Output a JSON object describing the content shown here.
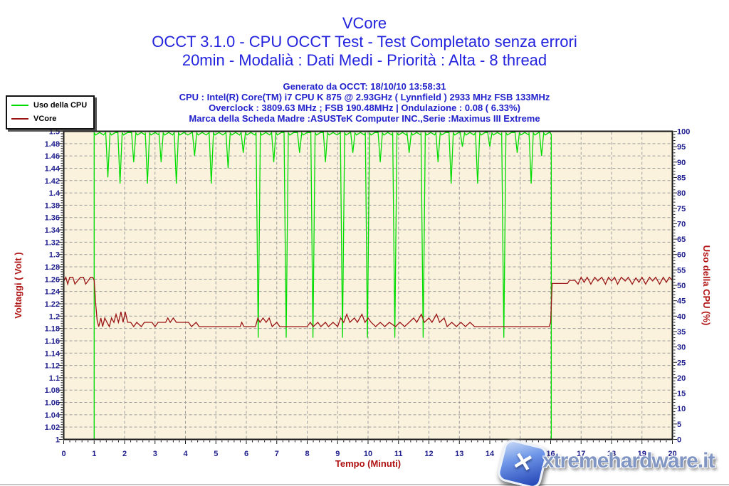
{
  "header": {
    "title": "VCore",
    "line2": "OCCT 3.1.0 - CPU OCCT Test - Test Completato senza errori",
    "line3": "20min - Modalià : Dati Medi - Priorità : Alta - 8 thread",
    "generated": "Generato da OCCT: 18/10/10 13:58:31",
    "cpu": "CPU : Intel(R) Core(TM) i7 CPU K 875 @ 2.93GHz ( Lynnfield ) 2933 MHz FSB 133MHz",
    "overclock": "Overclock : 3809.63 MHz ; FSB 190.48MHz | Ondulazione : 0.08 ( 6.33%)",
    "motherboard": "Marca della Scheda Madre :ASUSTeK Computer INC.,Serie :Maximus III Extreme"
  },
  "legend": {
    "items": [
      {
        "label": "Uso della CPU",
        "color": "#00DC00"
      },
      {
        "label": "VCore",
        "color": "#9A1414"
      }
    ]
  },
  "watermark": {
    "text": "xtremehardware.it",
    "logo_letter": "✕",
    "logo_name": "xtremehardware-x-logo"
  },
  "colors": {
    "header_blue": "#2323DE",
    "tick_label": "#1F1F8F",
    "axis_title_red": "#B01212",
    "plot_bg": "#FBF2DE",
    "grid": "#9E9E9E",
    "border": "#161616",
    "cpu_green": "#00DC00",
    "vcore_red": "#9A1414"
  },
  "chart_data": {
    "type": "line",
    "title": "VCore",
    "x_axis": {
      "label": "Tempo (Minuti)",
      "min": 0,
      "max": 20,
      "tick_step": 1,
      "minor_step": 0.2
    },
    "y_left": {
      "label": "Voltaggi ( Volt )",
      "min": 1.0,
      "max": 1.5,
      "tick_step": 0.02,
      "minor_step": 0.004
    },
    "y_right": {
      "label": "Uso della CPU (%)",
      "min": 0,
      "max": 100,
      "tick_step": 5,
      "minor_step": 1
    },
    "grid": {
      "style": "dashed",
      "horizontal_step_volts": 0.02,
      "vertical_step_minutes": 1
    },
    "legend_position": "top-left",
    "series": [
      {
        "name": "Uso della CPU",
        "axis": "right",
        "color": "#00DC00",
        "shape": "baseline-with-dips",
        "baseline_percent": 100,
        "start": {
          "x": 1.0,
          "from_percent": 0
        },
        "end": {
          "x": 16.02,
          "to_percent": 0
        },
        "dips": [
          [
            1.45,
            85
          ],
          [
            1.85,
            83
          ],
          [
            2.3,
            90
          ],
          [
            2.75,
            83
          ],
          [
            3.2,
            90
          ],
          [
            3.7,
            83
          ],
          [
            4.3,
            92
          ],
          [
            4.85,
            83
          ],
          [
            5.4,
            88
          ],
          [
            5.9,
            93
          ],
          [
            6.39,
            33
          ],
          [
            6.9,
            90
          ],
          [
            7.31,
            33
          ],
          [
            7.75,
            93
          ],
          [
            8.19,
            33
          ],
          [
            8.6,
            90
          ],
          [
            9.16,
            33
          ],
          [
            9.5,
            93
          ],
          [
            9.98,
            33
          ],
          [
            10.4,
            90
          ],
          [
            10.88,
            33
          ],
          [
            11.35,
            93
          ],
          [
            11.81,
            33
          ],
          [
            12.3,
            90
          ],
          [
            12.73,
            83
          ],
          [
            13.1,
            95
          ],
          [
            13.6,
            83
          ],
          [
            14.0,
            95
          ],
          [
            14.46,
            33
          ],
          [
            14.9,
            93
          ],
          [
            15.36,
            83
          ],
          [
            15.7,
            92
          ]
        ]
      },
      {
        "name": "VCore",
        "axis": "left",
        "color": "#9A1414",
        "shape": "points",
        "points": [
          [
            0,
            1.257
          ],
          [
            0.07,
            1.263
          ],
          [
            0.13,
            1.252
          ],
          [
            0.2,
            1.263
          ],
          [
            0.3,
            1.263
          ],
          [
            0.37,
            1.252
          ],
          [
            0.45,
            1.257
          ],
          [
            0.55,
            1.263
          ],
          [
            0.65,
            1.263
          ],
          [
            0.72,
            1.252
          ],
          [
            0.8,
            1.257
          ],
          [
            0.88,
            1.263
          ],
          [
            0.95,
            1.263
          ],
          [
            1.0,
            1.258
          ],
          [
            1.05,
            1.22
          ],
          [
            1.1,
            1.193
          ],
          [
            1.15,
            1.183
          ],
          [
            1.22,
            1.197
          ],
          [
            1.28,
            1.183
          ],
          [
            1.35,
            1.197
          ],
          [
            1.42,
            1.19
          ],
          [
            1.5,
            1.183
          ],
          [
            1.57,
            1.197
          ],
          [
            1.65,
            1.19
          ],
          [
            1.72,
            1.203
          ],
          [
            1.8,
            1.19
          ],
          [
            1.88,
            1.207
          ],
          [
            1.95,
            1.19
          ],
          [
            2.02,
            1.207
          ],
          [
            2.1,
            1.19
          ],
          [
            2.2,
            1.19
          ],
          [
            2.3,
            1.183
          ],
          [
            2.4,
            1.19
          ],
          [
            2.55,
            1.183
          ],
          [
            2.65,
            1.19
          ],
          [
            2.9,
            1.19
          ],
          [
            3.0,
            1.183
          ],
          [
            3.1,
            1.19
          ],
          [
            3.35,
            1.19
          ],
          [
            3.42,
            1.197
          ],
          [
            3.5,
            1.19
          ],
          [
            3.6,
            1.197
          ],
          [
            3.7,
            1.19
          ],
          [
            3.9,
            1.19
          ],
          [
            4.1,
            1.19
          ],
          [
            4.2,
            1.183
          ],
          [
            4.35,
            1.19
          ],
          [
            4.45,
            1.183
          ],
          [
            4.8,
            1.183
          ],
          [
            5.2,
            1.183
          ],
          [
            5.5,
            1.183
          ],
          [
            5.8,
            1.183
          ],
          [
            5.85,
            1.19
          ],
          [
            5.92,
            1.183
          ],
          [
            6.3,
            1.183
          ],
          [
            6.38,
            1.197
          ],
          [
            6.45,
            1.19
          ],
          [
            6.55,
            1.197
          ],
          [
            6.65,
            1.19
          ],
          [
            6.75,
            1.197
          ],
          [
            6.85,
            1.183
          ],
          [
            7.0,
            1.19
          ],
          [
            7.1,
            1.183
          ],
          [
            7.5,
            1.183
          ],
          [
            8.0,
            1.183
          ],
          [
            8.1,
            1.19
          ],
          [
            8.2,
            1.183
          ],
          [
            8.35,
            1.19
          ],
          [
            8.45,
            1.183
          ],
          [
            8.6,
            1.19
          ],
          [
            8.7,
            1.183
          ],
          [
            8.85,
            1.19
          ],
          [
            9.0,
            1.183
          ],
          [
            9.1,
            1.197
          ],
          [
            9.2,
            1.19
          ],
          [
            9.3,
            1.203
          ],
          [
            9.4,
            1.19
          ],
          [
            9.55,
            1.197
          ],
          [
            9.65,
            1.19
          ],
          [
            9.8,
            1.203
          ],
          [
            9.9,
            1.19
          ],
          [
            10.0,
            1.197
          ],
          [
            10.1,
            1.19
          ],
          [
            10.25,
            1.183
          ],
          [
            10.4,
            1.19
          ],
          [
            10.55,
            1.183
          ],
          [
            10.7,
            1.19
          ],
          [
            10.9,
            1.183
          ],
          [
            11.05,
            1.19
          ],
          [
            11.2,
            1.183
          ],
          [
            11.35,
            1.19
          ],
          [
            11.5,
            1.197
          ],
          [
            11.6,
            1.19
          ],
          [
            11.75,
            1.203
          ],
          [
            11.85,
            1.19
          ],
          [
            12.0,
            1.197
          ],
          [
            12.1,
            1.19
          ],
          [
            12.25,
            1.203
          ],
          [
            12.35,
            1.19
          ],
          [
            12.5,
            1.197
          ],
          [
            12.6,
            1.183
          ],
          [
            12.75,
            1.19
          ],
          [
            12.9,
            1.183
          ],
          [
            13.05,
            1.19
          ],
          [
            13.2,
            1.183
          ],
          [
            13.35,
            1.19
          ],
          [
            13.5,
            1.183
          ],
          [
            13.7,
            1.183
          ],
          [
            14.0,
            1.183
          ],
          [
            14.5,
            1.183
          ],
          [
            15.0,
            1.183
          ],
          [
            15.5,
            1.183
          ],
          [
            15.95,
            1.183
          ],
          [
            16.0,
            1.19
          ],
          [
            16.05,
            1.253
          ],
          [
            16.3,
            1.253
          ],
          [
            16.55,
            1.253
          ],
          [
            16.62,
            1.258
          ],
          [
            16.8,
            1.258
          ],
          [
            16.9,
            1.252
          ],
          [
            17.0,
            1.263
          ],
          [
            17.1,
            1.255
          ],
          [
            17.2,
            1.263
          ],
          [
            17.32,
            1.252
          ],
          [
            17.45,
            1.263
          ],
          [
            17.55,
            1.257
          ],
          [
            17.68,
            1.263
          ],
          [
            17.8,
            1.252
          ],
          [
            17.9,
            1.263
          ],
          [
            18.0,
            1.257
          ],
          [
            18.1,
            1.263
          ],
          [
            18.2,
            1.252
          ],
          [
            18.32,
            1.263
          ],
          [
            18.45,
            1.257
          ],
          [
            18.55,
            1.263
          ],
          [
            18.68,
            1.252
          ],
          [
            18.8,
            1.262
          ],
          [
            18.9,
            1.255
          ],
          [
            19.0,
            1.263
          ],
          [
            19.12,
            1.252
          ],
          [
            19.25,
            1.263
          ],
          [
            19.35,
            1.257
          ],
          [
            19.45,
            1.263
          ],
          [
            19.58,
            1.252
          ],
          [
            19.7,
            1.263
          ],
          [
            19.8,
            1.255
          ],
          [
            19.9,
            1.263
          ],
          [
            20.0,
            1.258
          ]
        ]
      }
    ]
  }
}
